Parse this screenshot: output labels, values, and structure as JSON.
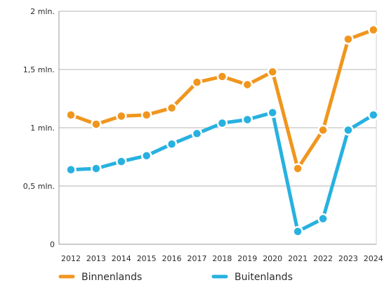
{
  "chart_data": {
    "type": "line",
    "x": [
      "2012",
      "2013",
      "2014",
      "2015",
      "2016",
      "2017",
      "2018",
      "2019",
      "2020",
      "2021",
      "2022",
      "2023",
      "2024"
    ],
    "series": [
      {
        "name": "Binnenlands",
        "color": "#F0961E",
        "values": [
          1.11,
          1.03,
          1.1,
          1.11,
          1.17,
          1.39,
          1.44,
          1.37,
          1.48,
          0.65,
          0.98,
          1.76,
          1.84
        ]
      },
      {
        "name": "Buitenlands",
        "color": "#27B1E0",
        "values": [
          0.64,
          0.65,
          0.71,
          0.76,
          0.86,
          0.95,
          1.04,
          1.07,
          1.13,
          0.11,
          0.22,
          0.98,
          1.11
        ]
      }
    ],
    "ylim": [
      0,
      2
    ],
    "yticks": [
      0,
      0.5,
      1,
      1.5,
      2
    ],
    "ytick_labels": [
      "0",
      "0,5 mln.",
      "1 mln.",
      "1,5 mln.",
      "2 mln."
    ],
    "grid": true,
    "legend_position": "bottom-left"
  }
}
